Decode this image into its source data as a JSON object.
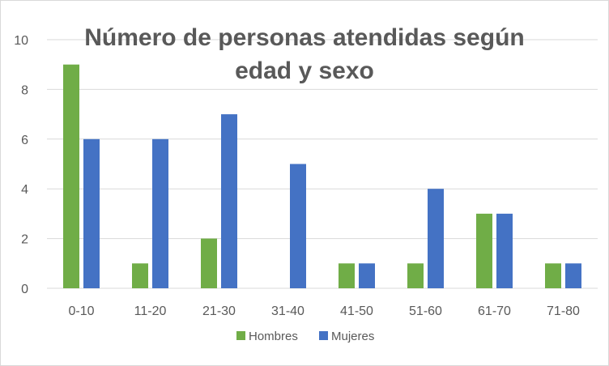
{
  "chart_data": {
    "type": "bar",
    "title_lines": [
      "Número de personas atendidas según",
      "edad y sexo"
    ],
    "categories": [
      "0-10",
      "11-20",
      "21-30",
      "31-40",
      "41-50",
      "51-60",
      "61-70",
      "71-80"
    ],
    "series": [
      {
        "name": "Hombres",
        "color": "#70ad47",
        "values": [
          9,
          1,
          2,
          0,
          1,
          1,
          3,
          1
        ]
      },
      {
        "name": "Mujeres",
        "color": "#4472c4",
        "values": [
          6,
          6,
          7,
          5,
          1,
          4,
          3,
          1
        ]
      }
    ],
    "ylim": [
      0,
      10
    ],
    "yticks": [
      0,
      2,
      4,
      6,
      8,
      10
    ],
    "grid": true,
    "gridline_color": "#d9d9d9",
    "legend_position": "bottom"
  }
}
